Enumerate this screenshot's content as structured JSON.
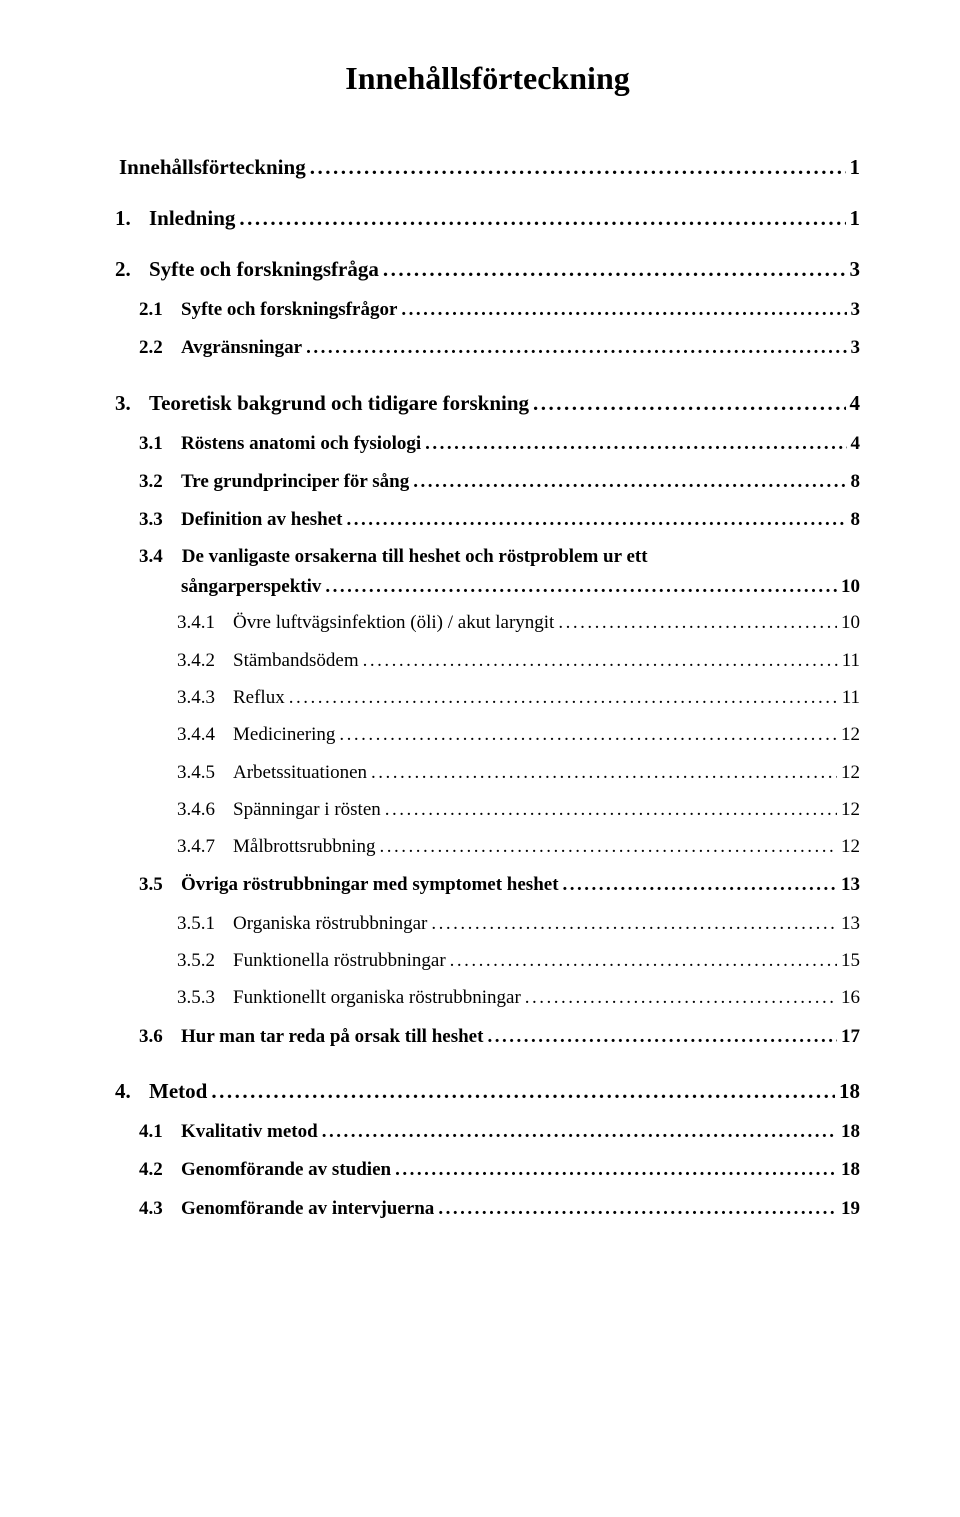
{
  "title": "Innehållsförteckning",
  "entries": [
    {
      "level": 1,
      "num": "",
      "label": "Innehållsförteckning",
      "page": "1"
    },
    {
      "level": 1,
      "num": "1.",
      "label": "Inledning",
      "page": "1"
    },
    {
      "level": 1,
      "num": "2.",
      "label": "Syfte och forskningsfråga",
      "page": "3"
    },
    {
      "level": 2,
      "num": "2.1",
      "label": "Syfte och forskningsfrågor",
      "page": "3"
    },
    {
      "level": 2,
      "num": "2.2",
      "label": "Avgränsningar",
      "page": "3"
    },
    {
      "level": 1,
      "num": "3.",
      "label": "Teoretisk bakgrund och tidigare forskning",
      "page": "4"
    },
    {
      "level": 2,
      "num": "3.1",
      "label": "Röstens anatomi och fysiologi",
      "page": "4"
    },
    {
      "level": 2,
      "num": "3.2",
      "label": "Tre grundprinciper för sång",
      "page": "8"
    },
    {
      "level": 2,
      "num": "3.3",
      "label": "Definition av heshet",
      "page": "8"
    },
    {
      "level": "2wrap",
      "num": "3.4",
      "label_a": "De vanligaste orsakerna till heshet och röstproblem ur ett",
      "label_b": "sångarperspektiv",
      "page": "10"
    },
    {
      "level": 3,
      "num": "3.4.1",
      "label": "Övre luftvägsinfektion (öli) / akut laryngit",
      "page": "10"
    },
    {
      "level": 3,
      "num": "3.4.2",
      "label": "Stämbandsödem",
      "page": "11"
    },
    {
      "level": 3,
      "num": "3.4.3",
      "label": "Reflux",
      "page": "11"
    },
    {
      "level": 3,
      "num": "3.4.4",
      "label": "Medicinering",
      "page": "12"
    },
    {
      "level": 3,
      "num": "3.4.5",
      "label": "Arbetssituationen",
      "page": "12"
    },
    {
      "level": 3,
      "num": "3.4.6",
      "label": "Spänningar i rösten",
      "page": "12"
    },
    {
      "level": 3,
      "num": "3.4.7",
      "label": "Målbrottsrubbning",
      "page": "12"
    },
    {
      "level": 2,
      "num": "3.5",
      "label": "Övriga röstrubbningar med symptomet heshet",
      "page": "13"
    },
    {
      "level": 3,
      "num": "3.5.1",
      "label": "Organiska röstrubbningar",
      "page": "13"
    },
    {
      "level": 3,
      "num": "3.5.2",
      "label": "Funktionella röstrubbningar",
      "page": "15"
    },
    {
      "level": 3,
      "num": "3.5.3",
      "label": "Funktionellt organiska röstrubbningar",
      "page": "16"
    },
    {
      "level": 2,
      "num": "3.6",
      "label": "Hur man tar reda på orsak till heshet",
      "page": "17"
    },
    {
      "level": 1,
      "num": "4.",
      "label": "Metod",
      "page": "18"
    },
    {
      "level": 2,
      "num": "4.1",
      "label": "Kvalitativ metod",
      "page": "18"
    },
    {
      "level": 2,
      "num": "4.2",
      "label": "Genomförande av studien",
      "page": "18"
    },
    {
      "level": 2,
      "num": "4.3",
      "label": "Genomförande av intervjuerna",
      "page": "19"
    }
  ]
}
